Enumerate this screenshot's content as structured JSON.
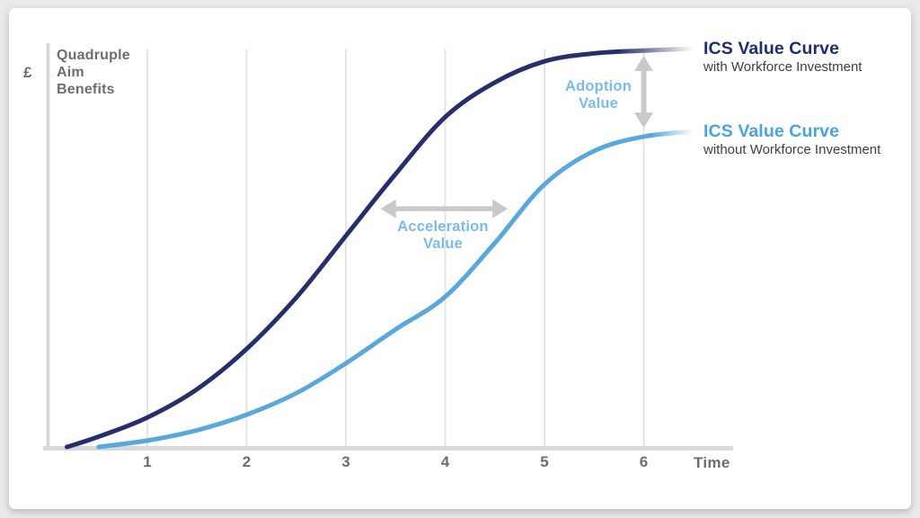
{
  "colors": {
    "navy_curve": "#262e6b",
    "light_blue_curve": "#58a8de",
    "annotation_blue": "#7abce9",
    "legend_navy": "#1f2e6f",
    "legend_light_blue": "#4aa3dd",
    "axis_gray": "#d7d8d9",
    "grid_gray": "#e2e3e4",
    "arrow_gray": "#c8c9cb",
    "text_gray": "#6c6d70",
    "legend_sub_text": "#3e3e40"
  },
  "y_axis": {
    "currency_label": "£",
    "axis_label_lines": [
      "Quadruple",
      "Aim",
      "Benefits"
    ]
  },
  "x_axis": {
    "ticks": [
      "1",
      "2",
      "3",
      "4",
      "5",
      "6"
    ],
    "label": "Time"
  },
  "legend": [
    {
      "title": "ICS Value Curve",
      "subtitle": "with Workforce Investment"
    },
    {
      "title": "ICS Value Curve",
      "subtitle": "without Workforce Investment"
    }
  ],
  "annotations": [
    {
      "label_lines": [
        "Adoption",
        "Value"
      ]
    },
    {
      "label_lines": [
        "Acceleration",
        "Value"
      ]
    }
  ],
  "chart_data": {
    "type": "line",
    "xlabel": "Time",
    "ylabel": "£ Quadruple Aim Benefits",
    "x_range": [
      0,
      6.5
    ],
    "y_range": [
      0,
      105
    ],
    "grid": "vertical-only",
    "legend_position": "right",
    "x_ticks": [
      1,
      2,
      3,
      4,
      5,
      6
    ],
    "series": [
      {
        "name": "ICS Value Curve with Workforce Investment",
        "color": "#262e6b",
        "x": [
          0.19,
          0.5,
          1,
          1.5,
          2,
          2.5,
          3,
          3.5,
          4,
          4.5,
          5,
          5.5,
          6,
          6.5
        ],
        "y": [
          0,
          2.5,
          7.4,
          14.5,
          24.6,
          37.5,
          53,
          68.5,
          82.8,
          91.5,
          96.8,
          98.8,
          99.5,
          100
        ]
      },
      {
        "name": "ICS Value Curve without Workforce Investment",
        "color": "#58a8de",
        "x": [
          0.51,
          1,
          1.5,
          2,
          2.5,
          3,
          3.5,
          4,
          4.5,
          5,
          5.5,
          6,
          6.5
        ],
        "y": [
          0,
          1.6,
          4.2,
          8.1,
          13.5,
          21,
          29.5,
          37.7,
          51.2,
          65.9,
          74.3,
          77.9,
          79.2
        ]
      }
    ],
    "annotations": [
      {
        "type": "vertical-arrow",
        "label": "Adoption Value",
        "x": 6.0,
        "y_from": 80.1,
        "y_to": 98.2
      },
      {
        "type": "horizontal-arrow",
        "label": "Acceleration Value",
        "y": 59.8,
        "x_from": 3.35,
        "x_to": 4.63
      }
    ]
  }
}
